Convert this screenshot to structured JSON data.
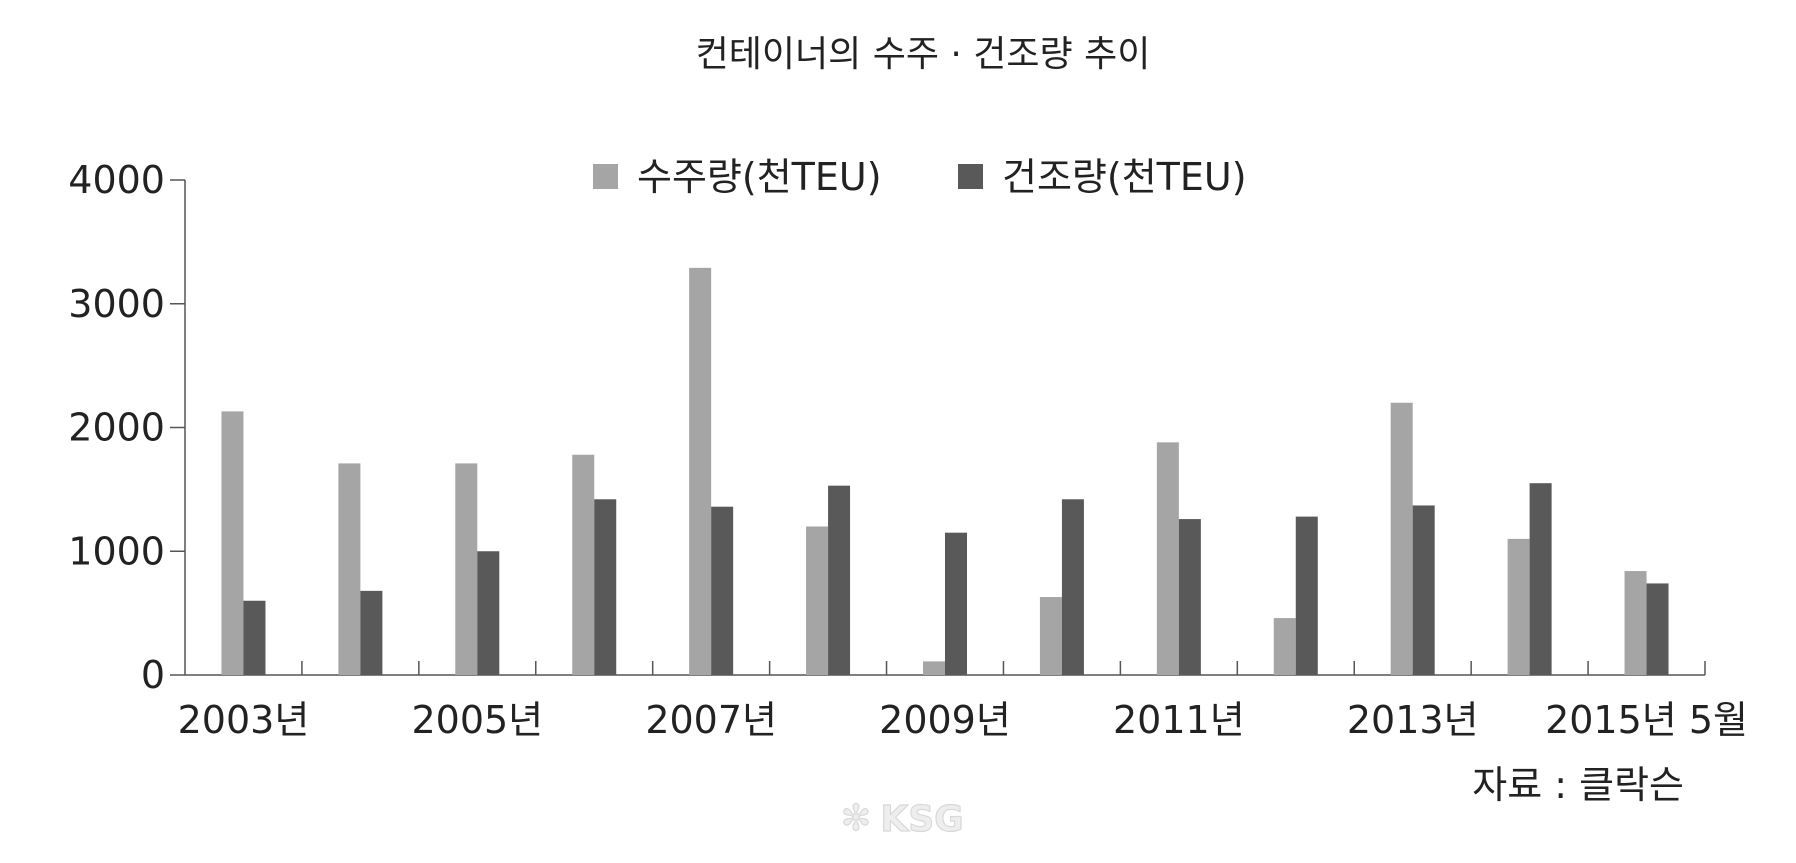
{
  "chart_data": {
    "type": "bar",
    "title": "컨테이너의 수주 · 건조량 추이",
    "xlabel": "",
    "ylabel": "",
    "ylim": [
      0,
      4000
    ],
    "yticks": [
      "0",
      "1000",
      "2000",
      "3000",
      "4000"
    ],
    "categories": [
      "2003",
      "2004",
      "2005",
      "2006",
      "2007",
      "2008",
      "2009",
      "2010",
      "2011",
      "2012",
      "2013",
      "2014",
      "2015.5"
    ],
    "x_tick_labels": [
      "2003년",
      "2005년",
      "2007년",
      "2009년",
      "2011년",
      "2013년",
      "2015년 5월"
    ],
    "x_tick_label_categories": [
      0,
      2,
      4,
      6,
      8,
      10,
      12
    ],
    "series": [
      {
        "name": "수주량(천TEU)",
        "color": "#a5a5a5",
        "values": [
          2130,
          1710,
          1710,
          1780,
          3290,
          1200,
          110,
          630,
          1880,
          460,
          2200,
          1100,
          840
        ]
      },
      {
        "name": "건조량(천TEU)",
        "color": "#595959",
        "values": [
          600,
          680,
          1000,
          1420,
          1360,
          1530,
          1150,
          1420,
          1260,
          1280,
          1370,
          1550,
          740
        ]
      }
    ],
    "legend_position": "top-center",
    "grid": false
  },
  "source_note": "자료 : 클락슨",
  "watermark": "KSG"
}
